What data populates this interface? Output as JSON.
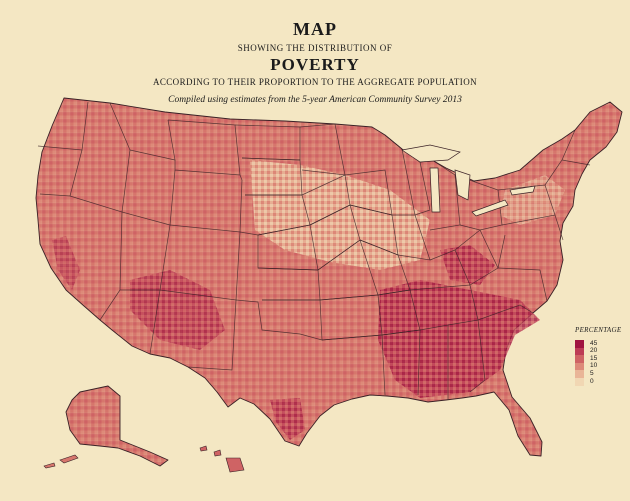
{
  "title": {
    "main": "MAP",
    "showing": "SHOWING THE DISTRIBUTION OF",
    "subject": "POVERTY",
    "according": "ACCORDING TO THEIR PROPORTION TO THE AGGREGATE POPULATION",
    "compiled": "Compiled using estimates from the 5-year American Community Survey 2013"
  },
  "legend": {
    "title": "PERCENTAGE",
    "classes": [
      {
        "label": "45",
        "color": "#a0143f"
      },
      {
        "label": "20",
        "color": "#bd3c55"
      },
      {
        "label": "15",
        "color": "#cf6364"
      },
      {
        "label": "10",
        "color": "#dd8a79"
      },
      {
        "label": "5",
        "color": "#e9b597"
      },
      {
        "label": "0",
        "color": "#f1d7b3"
      }
    ]
  },
  "colors": {
    "paper": "#f4e7c3",
    "land_base": "#d6766c",
    "state_border": "#3a2126",
    "high_poverty": "#a0143f",
    "low_poverty": "#f1d7b3"
  }
}
